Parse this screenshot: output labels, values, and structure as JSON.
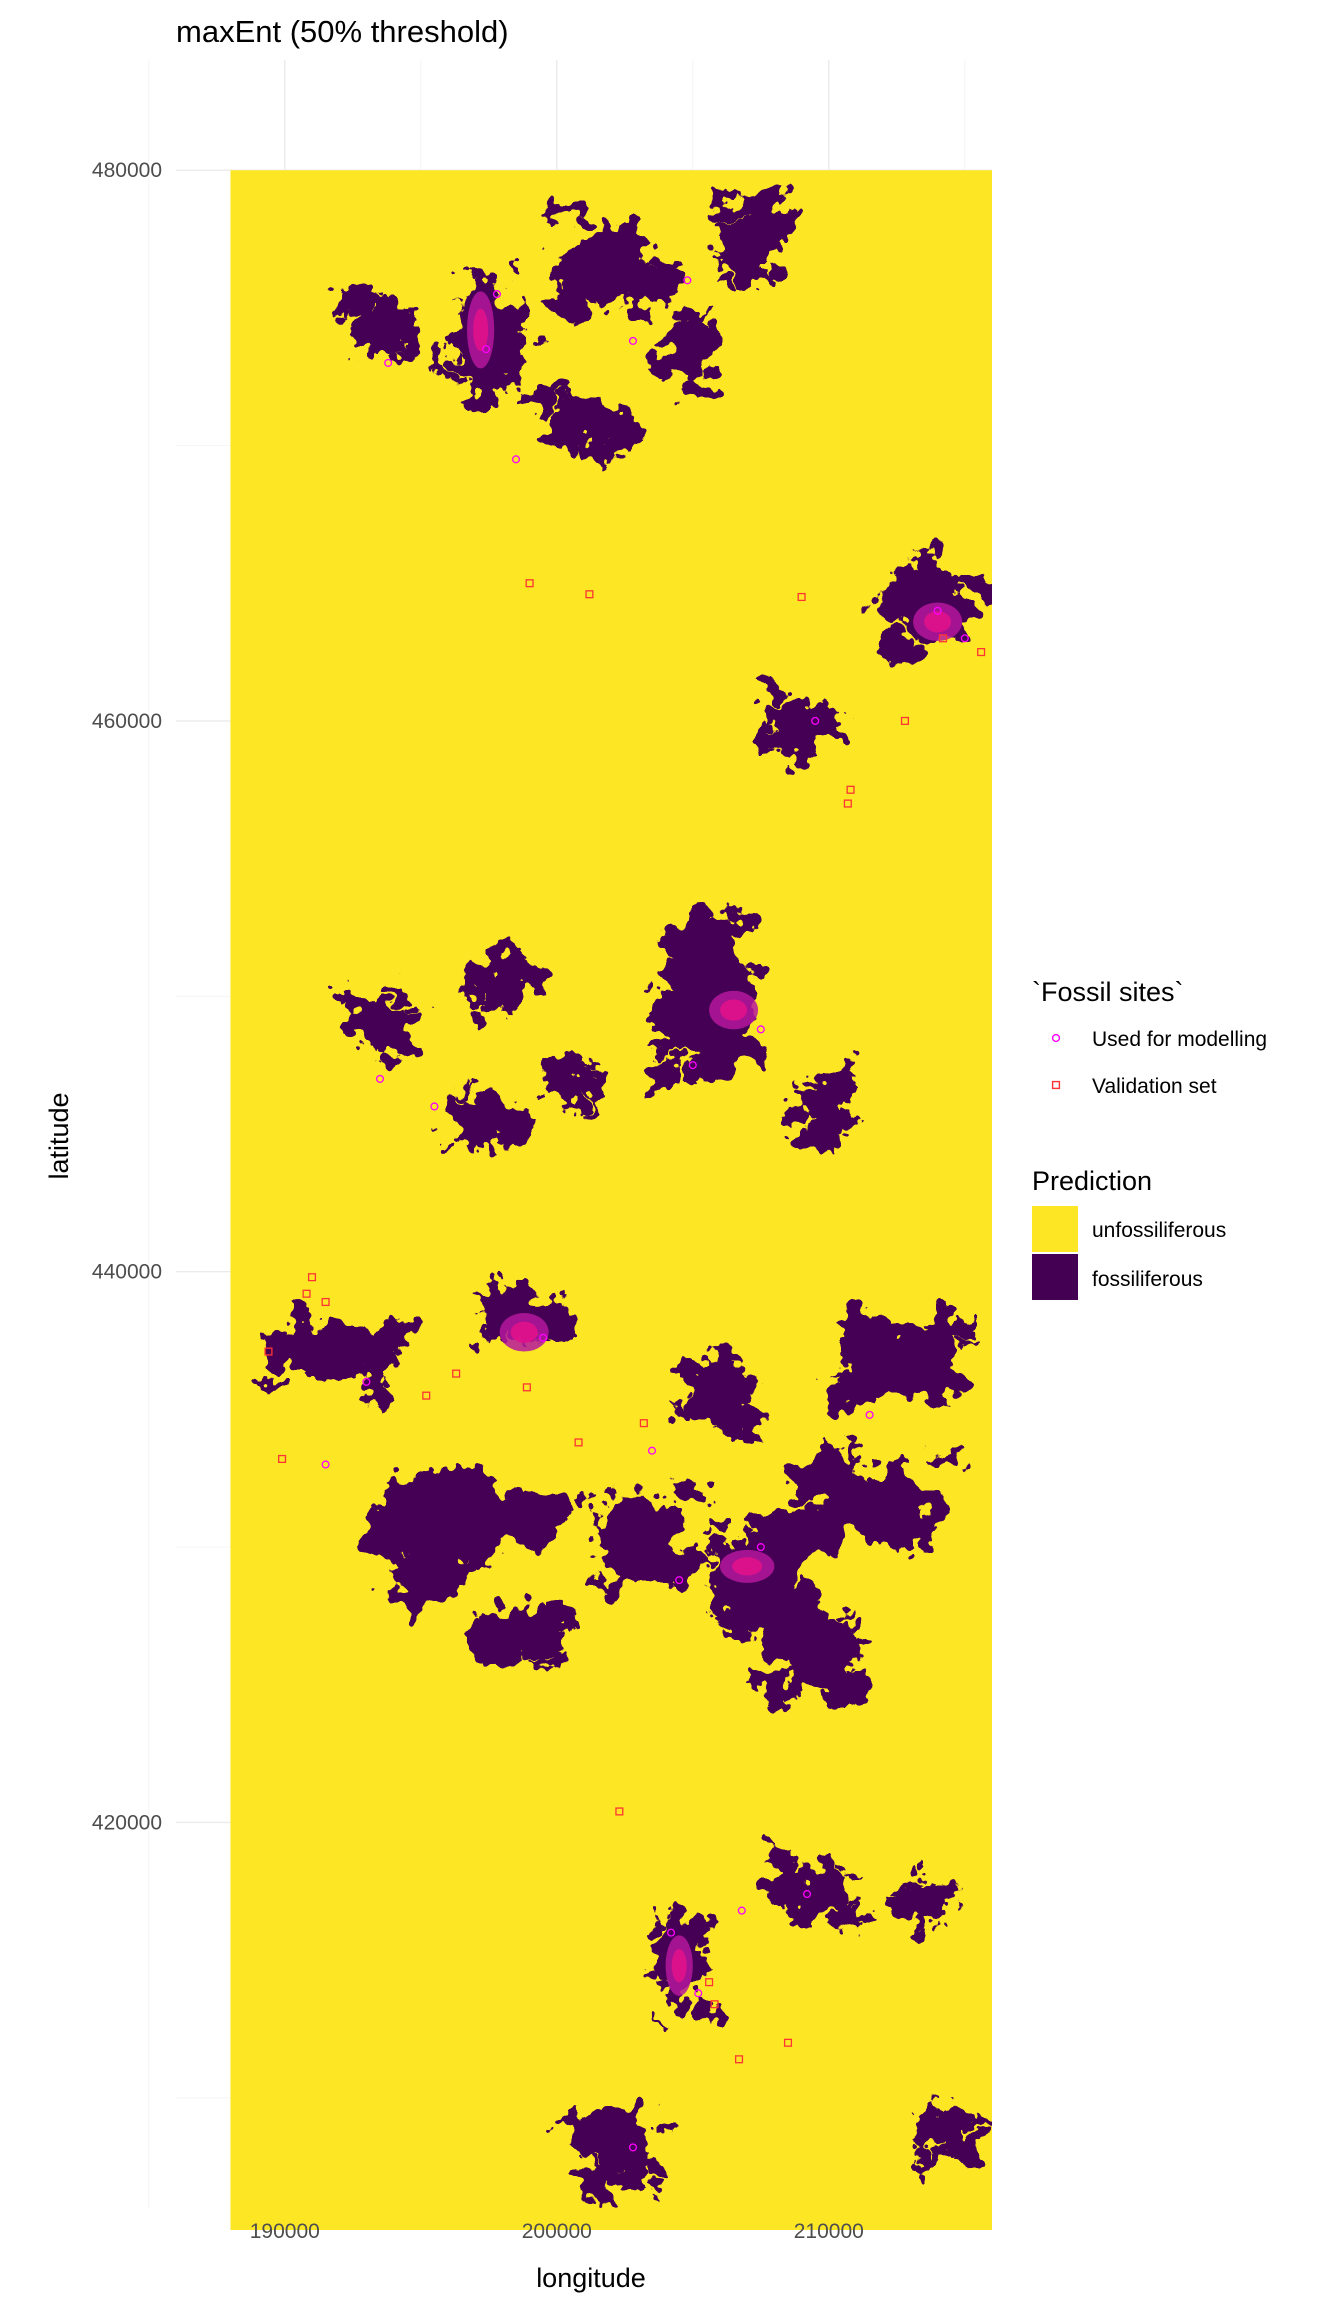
{
  "chart_data": {
    "type": "raster-map",
    "title": "maxEnt (50% threshold)",
    "xlabel": "longitude",
    "ylabel": "latitude",
    "xlim": [
      186000,
      216000
    ],
    "ylim": [
      406000,
      484000
    ],
    "raster_extent": {
      "x": [
        188000,
        216000
      ],
      "y": [
        405200,
        480000
      ]
    },
    "x_ticks": [
      190000,
      200000,
      210000
    ],
    "x_tick_labels": [
      "190000",
      "200000",
      "210000"
    ],
    "y_ticks": [
      420000,
      440000,
      460000,
      480000
    ],
    "y_tick_labels": [
      "420000",
      "440000",
      "460000",
      "480000"
    ],
    "grid": true,
    "legend_placement": "right",
    "legends": [
      {
        "title": "`Fossil sites`",
        "entries": [
          {
            "label": "Used for modelling",
            "shape": "circle",
            "color": "#ff00ff"
          },
          {
            "label": "Validation set",
            "shape": "square",
            "color": "#ff3333"
          }
        ]
      },
      {
        "title": "Prediction",
        "entries": [
          {
            "label": "unfossiliferous",
            "color": "#fde725"
          },
          {
            "label": "fossiliferous",
            "color": "#440154"
          }
        ]
      }
    ],
    "fossiliferous_regions": [
      {
        "x": 202000,
        "y": 476500,
        "rx": 1800,
        "ry": 2000,
        "seed": 1
      },
      {
        "x": 197500,
        "y": 474000,
        "rx": 1500,
        "ry": 2800,
        "seed": 2
      },
      {
        "x": 193500,
        "y": 474500,
        "rx": 1200,
        "ry": 1000,
        "seed": 3
      },
      {
        "x": 205000,
        "y": 473500,
        "rx": 1000,
        "ry": 1500,
        "seed": 4
      },
      {
        "x": 201000,
        "y": 471000,
        "rx": 1500,
        "ry": 1200,
        "seed": 5
      },
      {
        "x": 207000,
        "y": 477000,
        "rx": 1300,
        "ry": 1500,
        "seed": 6
      },
      {
        "x": 214000,
        "y": 464000,
        "rx": 1600,
        "ry": 1500,
        "seed": 7
      },
      {
        "x": 209000,
        "y": 460000,
        "rx": 1500,
        "ry": 1200,
        "seed": 8
      },
      {
        "x": 205500,
        "y": 450000,
        "rx": 2400,
        "ry": 2800,
        "seed": 9
      },
      {
        "x": 198000,
        "y": 450500,
        "rx": 1200,
        "ry": 1000,
        "seed": 10
      },
      {
        "x": 193500,
        "y": 449000,
        "rx": 1300,
        "ry": 1200,
        "seed": 11
      },
      {
        "x": 197000,
        "y": 445500,
        "rx": 1300,
        "ry": 1100,
        "seed": 12
      },
      {
        "x": 200500,
        "y": 447000,
        "rx": 1000,
        "ry": 900,
        "seed": 13
      },
      {
        "x": 210000,
        "y": 446000,
        "rx": 900,
        "ry": 1400,
        "seed": 14
      },
      {
        "x": 192000,
        "y": 437000,
        "rx": 2500,
        "ry": 1200,
        "seed": 15
      },
      {
        "x": 198500,
        "y": 438500,
        "rx": 1700,
        "ry": 1300,
        "seed": 16
      },
      {
        "x": 212500,
        "y": 437000,
        "rx": 2800,
        "ry": 1600,
        "seed": 17
      },
      {
        "x": 206000,
        "y": 435500,
        "rx": 1500,
        "ry": 1300,
        "seed": 18
      },
      {
        "x": 196000,
        "y": 431000,
        "rx": 3500,
        "ry": 2500,
        "seed": 19
      },
      {
        "x": 203000,
        "y": 430500,
        "rx": 2000,
        "ry": 2000,
        "seed": 20
      },
      {
        "x": 207000,
        "y": 429000,
        "rx": 1900,
        "ry": 1900,
        "seed": 21
      },
      {
        "x": 212000,
        "y": 431500,
        "rx": 2200,
        "ry": 1800,
        "seed": 22
      },
      {
        "x": 209500,
        "y": 426000,
        "rx": 1500,
        "ry": 1500,
        "seed": 23
      },
      {
        "x": 199000,
        "y": 427000,
        "rx": 1300,
        "ry": 1300,
        "seed": 24
      },
      {
        "x": 204500,
        "y": 415000,
        "rx": 1100,
        "ry": 2200,
        "seed": 25
      },
      {
        "x": 209500,
        "y": 417500,
        "rx": 1500,
        "ry": 1200,
        "seed": 26
      },
      {
        "x": 213500,
        "y": 417000,
        "rx": 900,
        "ry": 800,
        "seed": 27
      },
      {
        "x": 202500,
        "y": 408000,
        "rx": 1400,
        "ry": 1500,
        "seed": 28
      },
      {
        "x": 214500,
        "y": 408500,
        "rx": 900,
        "ry": 900,
        "seed": 29
      }
    ],
    "modelling_sites": [
      [
        197800,
        475500
      ],
      [
        197400,
        473500
      ],
      [
        193800,
        473000
      ],
      [
        202800,
        473800
      ],
      [
        204800,
        476000
      ],
      [
        198500,
        469500
      ],
      [
        214000,
        464000
      ],
      [
        215000,
        463000
      ],
      [
        209500,
        460000
      ],
      [
        207500,
        448800
      ],
      [
        205000,
        447500
      ],
      [
        193500,
        447000
      ],
      [
        195500,
        446000
      ],
      [
        193000,
        436000
      ],
      [
        199500,
        437600
      ],
      [
        191500,
        433000
      ],
      [
        203500,
        433500
      ],
      [
        207500,
        430000
      ],
      [
        204500,
        428800
      ],
      [
        211500,
        434800
      ],
      [
        204200,
        416000
      ],
      [
        206800,
        416800
      ],
      [
        209200,
        417400
      ],
      [
        205200,
        413800
      ],
      [
        202800,
        408200
      ]
    ],
    "validation_sites": [
      [
        199000,
        465000
      ],
      [
        201200,
        464600
      ],
      [
        209000,
        464500
      ],
      [
        214200,
        463000
      ],
      [
        215600,
        462500
      ],
      [
        212800,
        460000
      ],
      [
        210800,
        457500
      ],
      [
        210700,
        457000
      ],
      [
        191000,
        439800
      ],
      [
        190800,
        439200
      ],
      [
        191500,
        438900
      ],
      [
        189400,
        437100
      ],
      [
        196300,
        436300
      ],
      [
        195200,
        435500
      ],
      [
        198900,
        435800
      ],
      [
        189900,
        433200
      ],
      [
        200800,
        433800
      ],
      [
        203200,
        434500
      ],
      [
        202300,
        420400
      ],
      [
        205600,
        414200
      ],
      [
        205800,
        413400
      ],
      [
        208500,
        412000
      ],
      [
        206700,
        411400
      ]
    ],
    "modelling_hotspots": [
      {
        "x": 197200,
        "y": 474200,
        "rx": 500,
        "ry": 1400
      },
      {
        "x": 214000,
        "y": 463600,
        "rx": 900,
        "ry": 700
      },
      {
        "x": 206500,
        "y": 449500,
        "rx": 900,
        "ry": 700
      },
      {
        "x": 198800,
        "y": 437800,
        "rx": 900,
        "ry": 700
      },
      {
        "x": 207000,
        "y": 429300,
        "rx": 1000,
        "ry": 600
      },
      {
        "x": 204500,
        "y": 414800,
        "rx": 500,
        "ry": 1100
      }
    ]
  }
}
